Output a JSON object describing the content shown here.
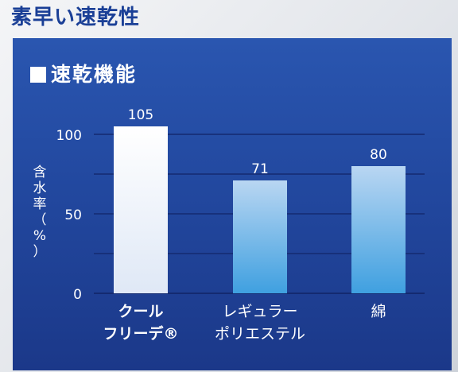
{
  "page": {
    "headline": "素早い速乾性"
  },
  "chart_data": {
    "type": "bar",
    "title": "速乾機能",
    "ylabel_chars": [
      "含",
      "水",
      "率",
      "（",
      "%",
      "）"
    ],
    "ylim": [
      0,
      100
    ],
    "yticks": [
      0,
      50,
      100
    ],
    "grid": true,
    "categories": [
      [
        "クール",
        "フリーデ®"
      ],
      [
        "レギュラー",
        "ポリエステル"
      ],
      [
        "綿"
      ]
    ],
    "values": [
      105,
      71,
      80
    ],
    "data_labels": [
      "105",
      "71",
      "80"
    ],
    "colors": {
      "bar_highlight_top": "#ffffff",
      "bar_highlight_bottom": "#dfe8f6",
      "bar_normal_top": "#b9d6f2",
      "bar_normal_bottom": "#3fa0e0",
      "gridline": "#142a70"
    }
  }
}
